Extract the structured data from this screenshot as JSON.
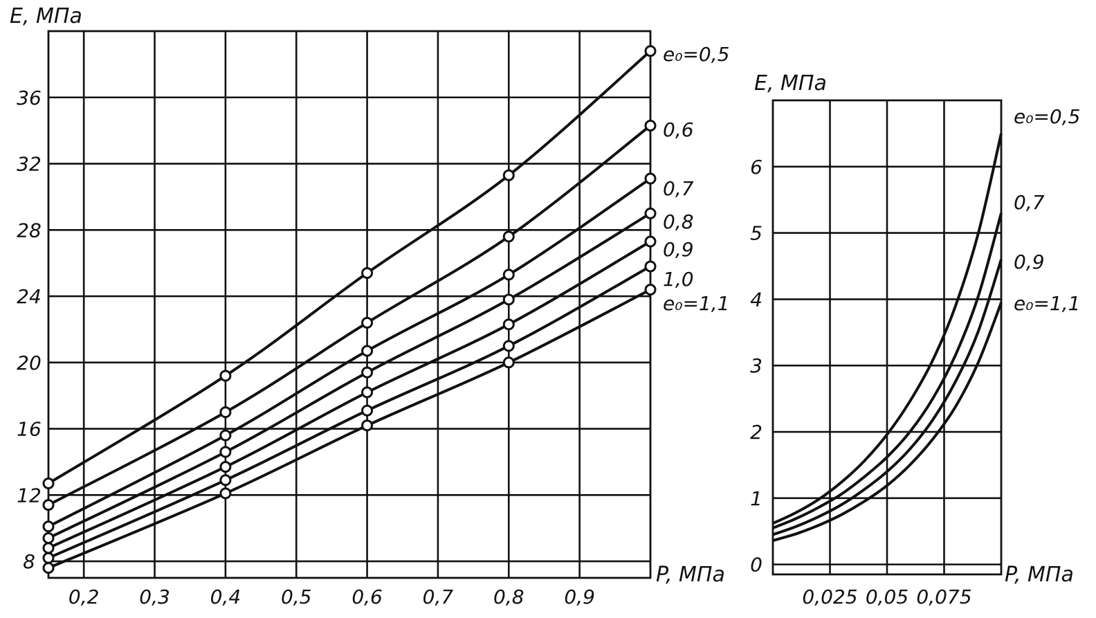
{
  "chart_data": [
    {
      "type": "line",
      "ylabel": "E, МПа",
      "xlabel": "P, МПа",
      "xlim": [
        0.15,
        1.0
      ],
      "ylim": [
        7,
        40
      ],
      "x_ticks": [
        0.2,
        0.3,
        0.4,
        0.5,
        0.6,
        0.7,
        0.8,
        0.9
      ],
      "x_tick_labels": [
        "0,2",
        "0,3",
        "0,4",
        "0,5",
        "0,6",
        "0,7",
        "0,8",
        "0,9"
      ],
      "y_ticks": [
        8,
        12,
        16,
        20,
        24,
        28,
        32,
        36
      ],
      "y_tick_labels": [
        "8",
        "12",
        "16",
        "20",
        "24",
        "28",
        "32",
        "36"
      ],
      "grid": true,
      "markers": true,
      "series": [
        {
          "name": "e₀=0,5",
          "x": [
            0.15,
            0.4,
            0.6,
            0.8,
            1.0
          ],
          "y": [
            12.7,
            19.2,
            25.4,
            31.3,
            38.8
          ]
        },
        {
          "name": "0,6",
          "x": [
            0.15,
            0.4,
            0.6,
            0.8,
            1.0
          ],
          "y": [
            11.4,
            17.0,
            22.4,
            27.6,
            34.3
          ]
        },
        {
          "name": "0,7",
          "x": [
            0.15,
            0.4,
            0.6,
            0.8,
            1.0
          ],
          "y": [
            10.1,
            15.6,
            20.7,
            25.3,
            31.1
          ]
        },
        {
          "name": "0,8",
          "x": [
            0.15,
            0.4,
            0.6,
            0.8,
            1.0
          ],
          "y": [
            9.4,
            14.6,
            19.4,
            23.8,
            29.0
          ]
        },
        {
          "name": "0,9",
          "x": [
            0.15,
            0.4,
            0.6,
            0.8,
            1.0
          ],
          "y": [
            8.8,
            13.7,
            18.2,
            22.3,
            27.3
          ]
        },
        {
          "name": "1,0",
          "x": [
            0.15,
            0.4,
            0.6,
            0.8,
            1.0
          ],
          "y": [
            8.2,
            12.9,
            17.1,
            21.0,
            25.8
          ]
        },
        {
          "name": "e₀=1,1",
          "x": [
            0.15,
            0.4,
            0.6,
            0.8,
            1.0
          ],
          "y": [
            7.6,
            12.1,
            16.2,
            20.0,
            24.4
          ]
        }
      ]
    },
    {
      "type": "line",
      "ylabel": "E, МПа",
      "xlabel": "P, МПа",
      "xlim": [
        0,
        0.1
      ],
      "ylim": [
        -0.15,
        7
      ],
      "x_ticks": [
        0.025,
        0.05,
        0.075
      ],
      "x_tick_labels": [
        "0,025",
        "0,05",
        "0,075"
      ],
      "y_ticks": [
        0,
        1,
        2,
        3,
        4,
        5,
        6
      ],
      "y_tick_labels": [
        "0",
        "1",
        "2",
        "3",
        "4",
        "5",
        "6"
      ],
      "grid": true,
      "markers": false,
      "series": [
        {
          "name": "e₀=0,5",
          "x": [
            0,
            0.01,
            0.02,
            0.03,
            0.04,
            0.05,
            0.06,
            0.07,
            0.08,
            0.09,
            0.1
          ],
          "y": [
            0.62,
            0.78,
            0.98,
            1.24,
            1.56,
            1.96,
            2.46,
            3.08,
            3.9,
            5.0,
            6.5
          ]
        },
        {
          "name": "0,7",
          "x": [
            0,
            0.01,
            0.02,
            0.03,
            0.04,
            0.05,
            0.06,
            0.07,
            0.08,
            0.09,
            0.1
          ],
          "y": [
            0.55,
            0.69,
            0.86,
            1.06,
            1.32,
            1.62,
            2.0,
            2.5,
            3.16,
            4.05,
            5.3
          ]
        },
        {
          "name": "0,9",
          "x": [
            0,
            0.01,
            0.02,
            0.03,
            0.04,
            0.05,
            0.06,
            0.07,
            0.08,
            0.09,
            0.1
          ],
          "y": [
            0.45,
            0.57,
            0.72,
            0.9,
            1.13,
            1.4,
            1.74,
            2.18,
            2.76,
            3.52,
            4.6
          ]
        },
        {
          "name": "e₀=1,1",
          "x": [
            0,
            0.01,
            0.02,
            0.03,
            0.04,
            0.05,
            0.06,
            0.07,
            0.08,
            0.09,
            0.1
          ],
          "y": [
            0.36,
            0.46,
            0.59,
            0.75,
            0.95,
            1.19,
            1.5,
            1.89,
            2.38,
            3.05,
            3.95
          ]
        }
      ]
    }
  ]
}
